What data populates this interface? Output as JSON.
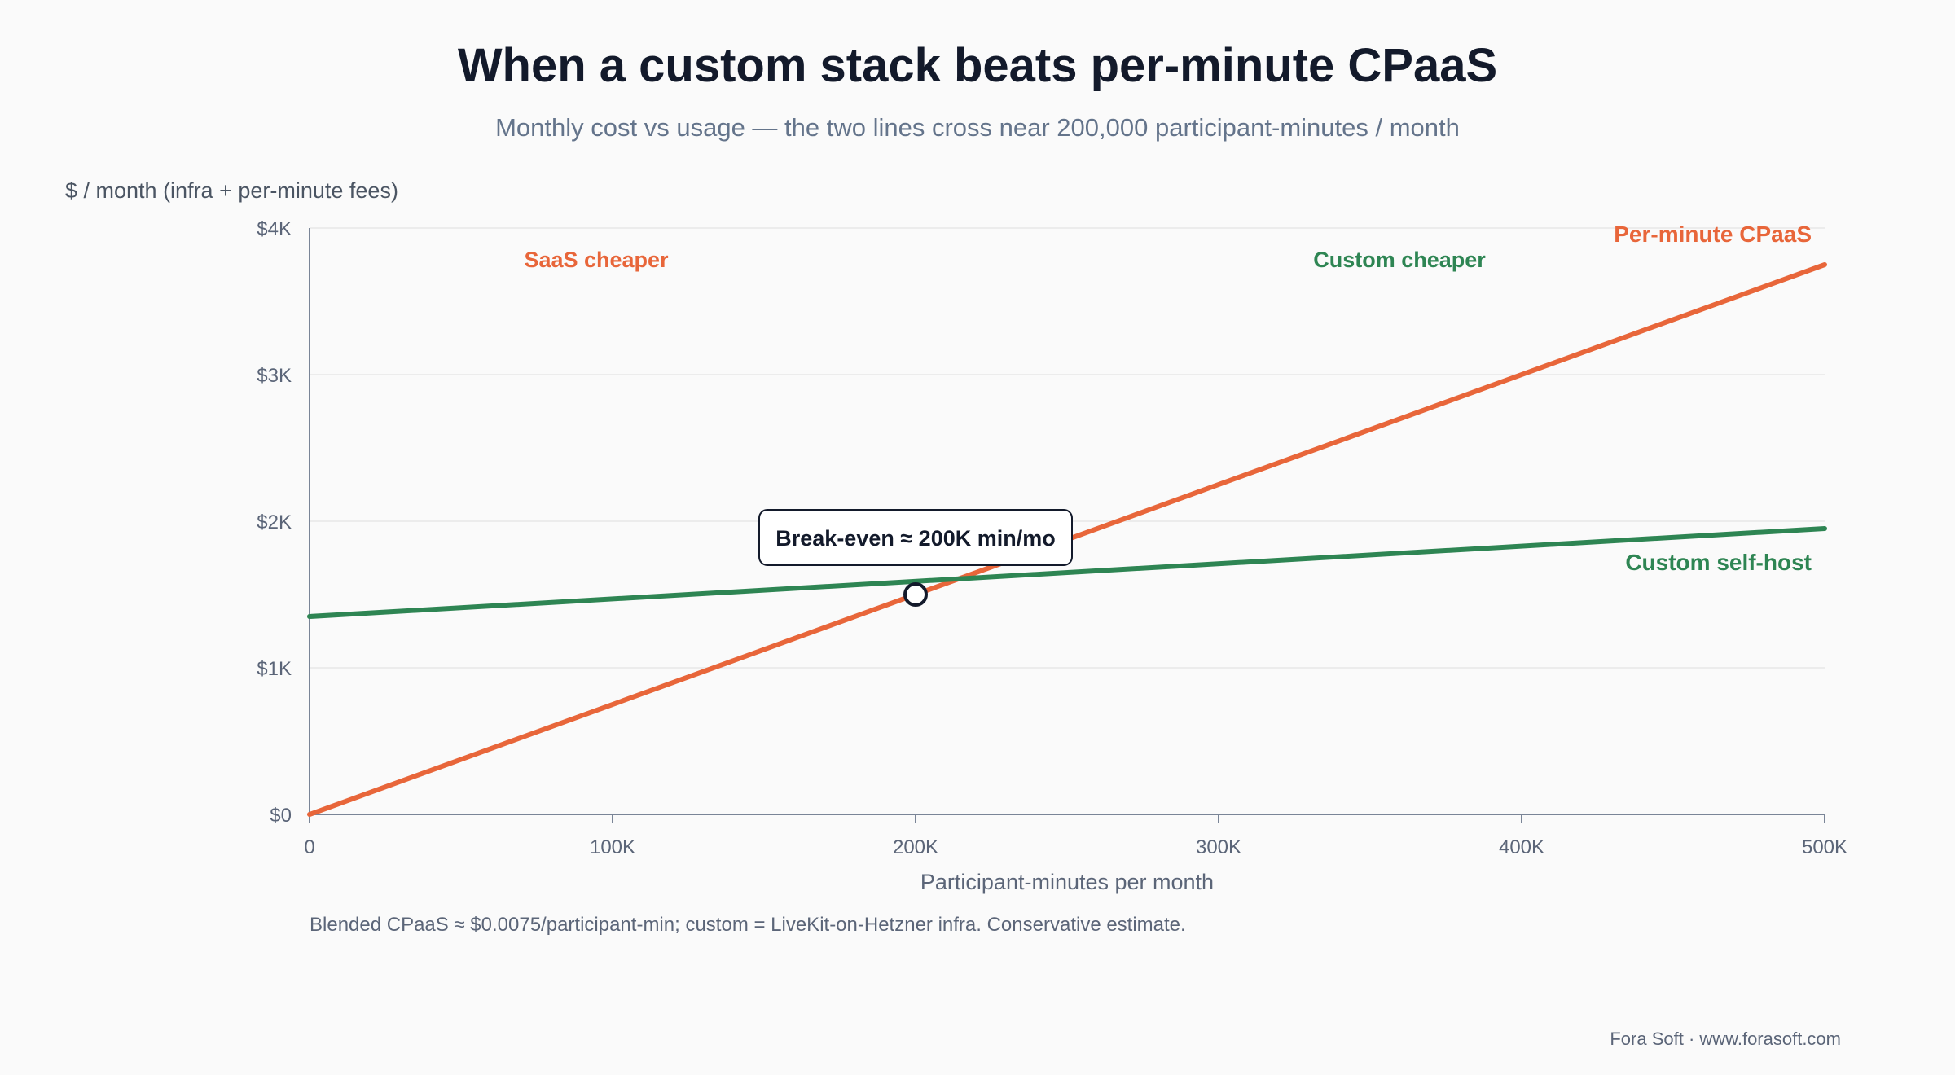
{
  "title": "When a custom stack beats per-minute CPaaS",
  "subtitle": "Monthly cost vs usage — the two lines cross near 200,000 participant-minutes / month",
  "footnote": "Blended CPaaS ≈ $0.0075/participant-min; custom = LiveKit-on-Hetzner infra. Conservative estimate.",
  "footer": "Fora Soft · www.forasoft.com",
  "colors": {
    "cpaas": "#e8663a",
    "custom": "#2e8553",
    "text_dark": "#131a2b",
    "muted": "#5b6578"
  },
  "chart_data": {
    "type": "line",
    "ylabel": "$ / month (infra + per-minute fees)",
    "xlabel": "Participant-minutes per month",
    "xlim": [
      0,
      500000
    ],
    "ylim": [
      0,
      4000
    ],
    "x_ticks": [
      {
        "value": 0,
        "label": "0"
      },
      {
        "value": 100000,
        "label": "100K"
      },
      {
        "value": 200000,
        "label": "200K"
      },
      {
        "value": 300000,
        "label": "300K"
      },
      {
        "value": 400000,
        "label": "400K"
      },
      {
        "value": 500000,
        "label": "500K"
      }
    ],
    "y_ticks": [
      {
        "value": 0,
        "label": "$0"
      },
      {
        "value": 1000,
        "label": "$1K"
      },
      {
        "value": 2000,
        "label": "$2K"
      },
      {
        "value": 3000,
        "label": "$3K"
      },
      {
        "value": 4000,
        "label": "$4K"
      }
    ],
    "grid": true,
    "series": [
      {
        "name": "Per-minute CPaaS",
        "color": "#e8663a",
        "x": [
          0,
          500000
        ],
        "y": [
          0,
          3750
        ]
      },
      {
        "name": "Custom self-host",
        "color": "#2e8553",
        "x": [
          0,
          500000
        ],
        "y": [
          1350,
          1950
        ]
      }
    ],
    "annotations": {
      "saas_region": "SaaS cheaper",
      "custom_region": "Custom cheaper",
      "break_even": {
        "label": "Break-even ≈ 200K min/mo",
        "x": 200000,
        "y": 1500
      }
    }
  }
}
